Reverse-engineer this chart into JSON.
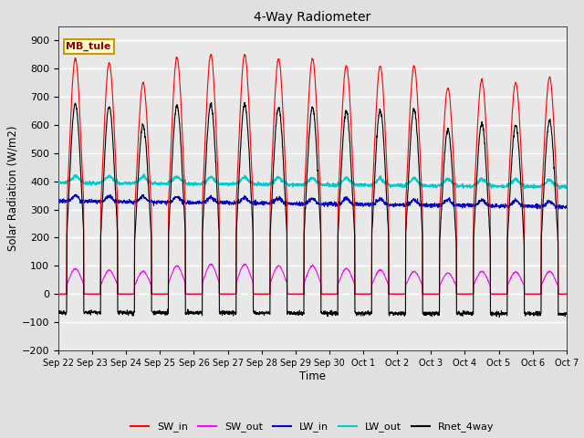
{
  "title": "4-Way Radiometer",
  "xlabel": "Time",
  "ylabel": "Solar Radiation (W/m2)",
  "ylim": [
    -200,
    950
  ],
  "yticks": [
    -200,
    -100,
    0,
    100,
    200,
    300,
    400,
    500,
    600,
    700,
    800,
    900
  ],
  "background_color": "#e0e0e0",
  "plot_bg_color": "#e8e8e8",
  "annotation_text": "MB_tule",
  "annotation_bg": "#ffffcc",
  "annotation_border": "#cc9900",
  "colors": {
    "SW_in": "#ff0000",
    "SW_out": "#ff00ff",
    "LW_in": "#0000cc",
    "LW_out": "#00cccc",
    "Rnet_4way": "#000000"
  },
  "n_days": 15,
  "x_tick_labels": [
    "Sep 22",
    "Sep 23",
    "Sep 24",
    "Sep 25",
    "Sep 26",
    "Sep 27",
    "Sep 28",
    "Sep 29",
    "Sep 30",
    "Oct 1",
    "Oct 2",
    "Oct 3",
    "Oct 4",
    "Oct 5",
    "Oct 6",
    "Oct 7"
  ],
  "legend_entries": [
    "SW_in",
    "SW_out",
    "LW_in",
    "LW_out",
    "Rnet_4way"
  ]
}
